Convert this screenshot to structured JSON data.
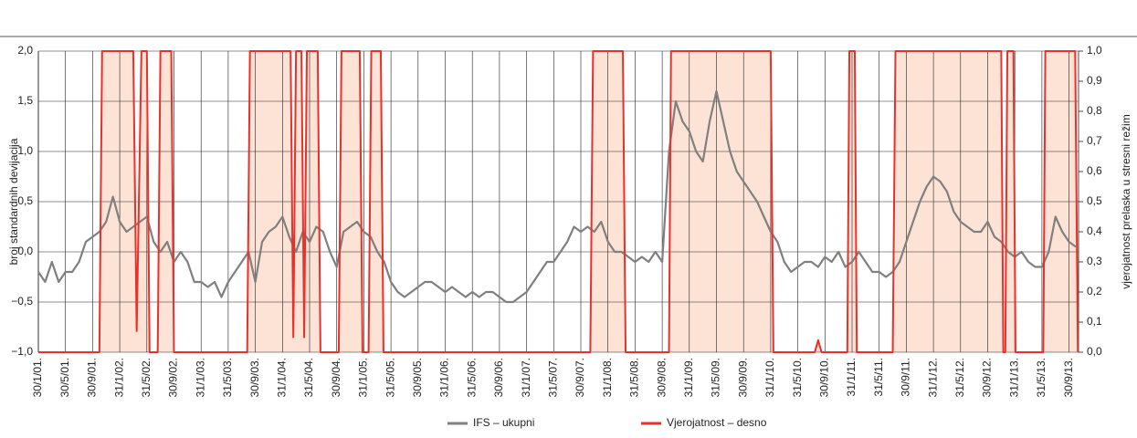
{
  "chart_data": {
    "type": "line",
    "y_label": "broj standardnih devijacija",
    "y2_label": "vjerojatnost prelaska u stresni režim",
    "xlim": [
      0,
      153.4
    ],
    "xticks": [
      {
        "value": 0,
        "label": "30/1/01."
      },
      {
        "value": 4,
        "label": "30/5/01."
      },
      {
        "value": 8,
        "label": "30/9/01."
      },
      {
        "value": 12,
        "label": "31/1/02."
      },
      {
        "value": 16,
        "label": "31/5/02."
      },
      {
        "value": 20,
        "label": "30/9/02."
      },
      {
        "value": 24,
        "label": "31/1/03."
      },
      {
        "value": 28,
        "label": "31/5/03."
      },
      {
        "value": 32,
        "label": "30/9/03."
      },
      {
        "value": 36,
        "label": "31/1/04."
      },
      {
        "value": 40,
        "label": "31/5/04."
      },
      {
        "value": 44,
        "label": "30/9/04."
      },
      {
        "value": 48,
        "label": "31/1/05."
      },
      {
        "value": 52,
        "label": "31/5/05."
      },
      {
        "value": 56,
        "label": "30/9/05."
      },
      {
        "value": 60,
        "label": "31/1/06."
      },
      {
        "value": 64,
        "label": "31/5/06."
      },
      {
        "value": 68,
        "label": "30/9/06."
      },
      {
        "value": 72,
        "label": "31/1/07."
      },
      {
        "value": 76,
        "label": "31/5/07."
      },
      {
        "value": 80,
        "label": "30/9/07."
      },
      {
        "value": 84,
        "label": "31/1/08."
      },
      {
        "value": 88,
        "label": "31/5/08."
      },
      {
        "value": 92,
        "label": "30/9/08."
      },
      {
        "value": 96,
        "label": "31/1/09."
      },
      {
        "value": 100,
        "label": "31/5/09."
      },
      {
        "value": 104,
        "label": "30/9/09."
      },
      {
        "value": 108,
        "label": "31/1/10."
      },
      {
        "value": 112,
        "label": "31/5/10."
      },
      {
        "value": 116,
        "label": "30/9/10."
      },
      {
        "value": 120,
        "label": "31/1/11."
      },
      {
        "value": 124,
        "label": "31/5/11."
      },
      {
        "value": 128,
        "label": "30/9/11."
      },
      {
        "value": 132,
        "label": "31/1/12."
      },
      {
        "value": 136,
        "label": "31/5/12."
      },
      {
        "value": 140,
        "label": "30/9/12."
      },
      {
        "value": 144,
        "label": "31/1/13."
      },
      {
        "value": 148,
        "label": "31/5/13."
      },
      {
        "value": 152,
        "label": "30/9/13."
      }
    ],
    "ylim": [
      -1,
      2
    ],
    "yticks": [
      {
        "value": -1,
        "label": "−1,0"
      },
      {
        "value": -0.5,
        "label": "−0,5"
      },
      {
        "value": 0,
        "label": "0,0"
      },
      {
        "value": 0.5,
        "label": "0,5"
      },
      {
        "value": 1,
        "label": "1,0"
      },
      {
        "value": 1.5,
        "label": "1,5"
      },
      {
        "value": 2,
        "label": "2,0"
      }
    ],
    "y2lim": [
      0,
      1
    ],
    "y2ticks": [
      {
        "value": 0,
        "label": "0,0"
      },
      {
        "value": 0.1,
        "label": "0,1"
      },
      {
        "value": 0.2,
        "label": "0,2"
      },
      {
        "value": 0.3,
        "label": "0,3"
      },
      {
        "value": 0.4,
        "label": "0,4"
      },
      {
        "value": 0.5,
        "label": "0,5"
      },
      {
        "value": 0.6,
        "label": "0,6"
      },
      {
        "value": 0.7,
        "label": "0,7"
      },
      {
        "value": 0.8,
        "label": "0,8"
      },
      {
        "value": 0.9,
        "label": "0,9"
      },
      {
        "value": 1,
        "label": "1,0"
      }
    ],
    "grid": true,
    "legend": "bottom",
    "series": [
      {
        "name": "IFS – ukupni",
        "color": "#808080",
        "x": [
          0,
          1,
          2,
          3,
          4,
          5,
          6,
          7,
          8,
          9,
          10,
          11,
          12,
          13,
          14,
          15,
          16,
          17,
          18,
          19,
          20,
          21,
          22,
          23,
          24,
          25,
          26,
          27,
          28,
          29,
          30,
          31,
          32,
          33,
          34,
          35,
          36,
          37,
          38,
          39,
          40,
          41,
          42,
          43,
          44,
          45,
          46,
          47,
          48,
          49,
          50,
          51,
          52,
          53,
          54,
          55,
          56,
          57,
          58,
          59,
          60,
          61,
          62,
          63,
          64,
          65,
          66,
          67,
          68,
          69,
          70,
          71,
          72,
          73,
          74,
          75,
          76,
          77,
          78,
          79,
          80,
          81,
          82,
          83,
          84,
          85,
          86,
          87,
          88,
          89,
          90,
          91,
          92,
          93,
          94,
          95,
          96,
          97,
          98,
          99,
          100,
          101,
          102,
          103,
          104,
          105,
          106,
          107,
          108,
          109,
          110,
          111,
          112,
          113,
          114,
          115,
          116,
          117,
          118,
          119,
          120,
          121,
          122,
          123,
          124,
          125,
          126,
          127,
          128,
          129,
          130,
          131,
          132,
          133,
          134,
          135,
          136,
          137,
          138,
          139,
          140,
          141,
          142,
          143,
          144,
          145,
          146,
          147,
          148,
          149,
          150,
          151,
          152,
          153
        ],
        "values": [
          -0.2,
          -0.3,
          -0.1,
          -0.3,
          -0.2,
          -0.2,
          -0.1,
          0.1,
          0.15,
          0.2,
          0.3,
          0.55,
          0.3,
          0.2,
          0.25,
          0.3,
          0.35,
          0.1,
          0.0,
          0.1,
          -0.1,
          0.0,
          -0.1,
          -0.3,
          -0.3,
          -0.35,
          -0.3,
          -0.45,
          -0.3,
          -0.2,
          -0.1,
          0.0,
          -0.3,
          0.1,
          0.2,
          0.25,
          0.35,
          0.15,
          0.0,
          0.2,
          0.1,
          0.25,
          0.2,
          0.0,
          -0.15,
          0.2,
          0.25,
          0.3,
          0.2,
          0.15,
          0.0,
          -0.1,
          -0.3,
          -0.4,
          -0.45,
          -0.4,
          -0.35,
          -0.3,
          -0.3,
          -0.35,
          -0.4,
          -0.35,
          -0.4,
          -0.45,
          -0.4,
          -0.45,
          -0.4,
          -0.4,
          -0.45,
          -0.5,
          -0.5,
          -0.45,
          -0.4,
          -0.3,
          -0.2,
          -0.1,
          -0.1,
          0.0,
          0.1,
          0.25,
          0.2,
          0.25,
          0.2,
          0.3,
          0.1,
          0.0,
          0.0,
          -0.05,
          -0.1,
          -0.05,
          -0.1,
          0.0,
          -0.1,
          1.0,
          1.5,
          1.3,
          1.2,
          1.0,
          0.9,
          1.3,
          1.6,
          1.3,
          1.0,
          0.8,
          0.7,
          0.6,
          0.5,
          0.35,
          0.2,
          0.1,
          -0.1,
          -0.2,
          -0.15,
          -0.1,
          -0.1,
          -0.15,
          -0.05,
          -0.1,
          0.0,
          -0.15,
          -0.1,
          0.0,
          -0.1,
          -0.2,
          -0.2,
          -0.25,
          -0.2,
          -0.1,
          0.1,
          0.3,
          0.5,
          0.65,
          0.75,
          0.7,
          0.6,
          0.4,
          0.3,
          0.25,
          0.2,
          0.2,
          0.3,
          0.15,
          0.1,
          0.0,
          -0.05,
          0.0,
          -0.1,
          -0.15,
          -0.15,
          0.0,
          0.35,
          0.2,
          0.1,
          0.05
        ]
      },
      {
        "name": "Vjerojatnost – desno",
        "color": "#e8312a",
        "axis": "y2",
        "fill": "#fde3d6",
        "x": [
          0,
          9,
          9.4,
          14,
          14.5,
          15.2,
          16,
          16.4,
          17.6,
          18,
          19.6,
          20,
          30.8,
          31.2,
          37.2,
          37.6,
          38,
          38.8,
          39.2,
          39.6,
          41.2,
          41.6,
          44.3,
          44.7,
          47.4,
          47.8,
          48.7,
          49.1,
          50.5,
          50.9,
          81.4,
          81.8,
          86.2,
          86.6,
          93,
          93.3,
          108,
          108.4,
          114.5,
          115,
          115.5,
          119.3,
          119.6,
          120.4,
          120.7,
          126,
          126.4,
          142,
          142.3,
          142.6,
          142.9,
          143.8,
          144.1,
          148.2,
          148.5,
          152.9,
          153.3
        ],
        "values": [
          0,
          0,
          1,
          1,
          0.07,
          1,
          1,
          0,
          0,
          1,
          1,
          0,
          0,
          1,
          1,
          0.05,
          1,
          1,
          0.05,
          1,
          1,
          0,
          0,
          1,
          1,
          0,
          0,
          1,
          1,
          0,
          0,
          1,
          1,
          0,
          0,
          1,
          1,
          0,
          0,
          0.04,
          0,
          0,
          1,
          1,
          0,
          0,
          1,
          1,
          0,
          0,
          1,
          1,
          0,
          0,
          1,
          1,
          0
        ]
      }
    ]
  }
}
